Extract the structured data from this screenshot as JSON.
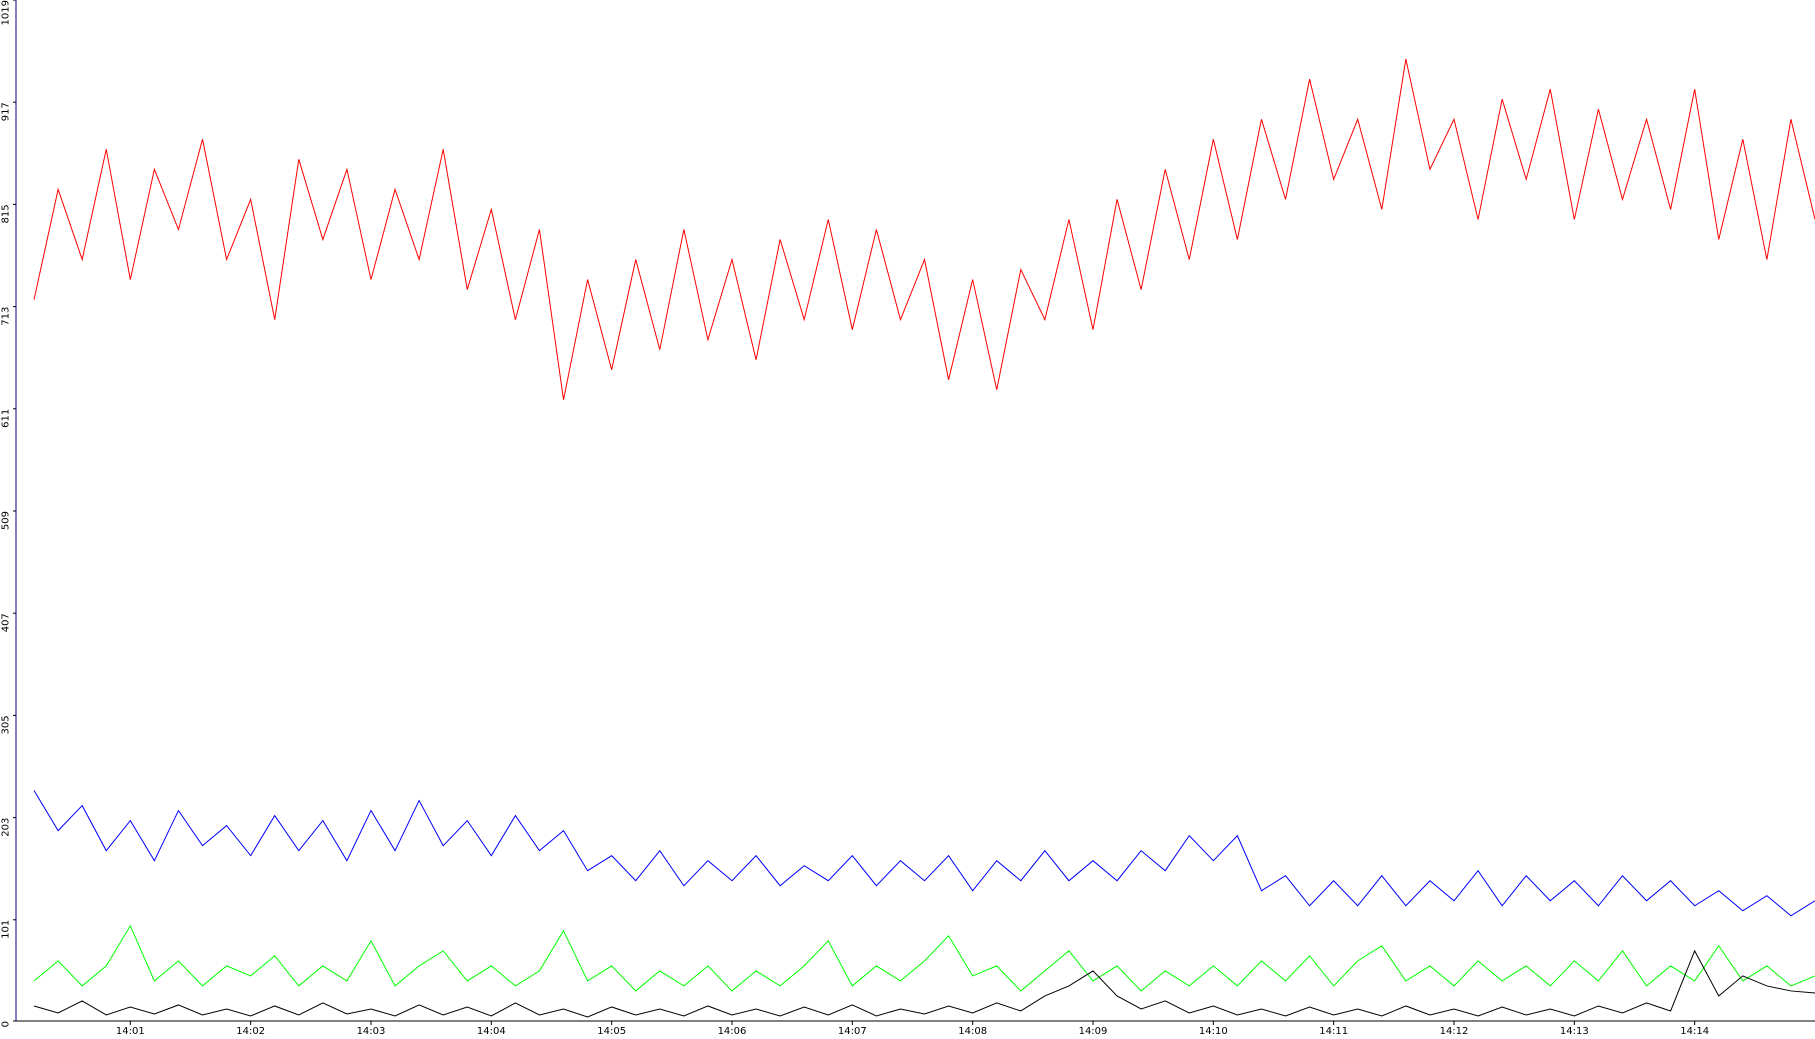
{
  "chart_data": {
    "type": "line",
    "x": [
      0.2,
      0.4,
      0.6,
      0.8,
      1.0,
      1.2,
      1.4,
      1.6,
      1.8,
      2.0,
      2.2,
      2.4,
      2.6,
      2.8,
      3.0,
      3.2,
      3.4,
      3.6,
      3.8,
      4.0,
      4.2,
      4.4,
      4.6,
      4.8,
      5.0,
      5.2,
      5.4,
      5.6,
      5.8,
      6.0,
      6.2,
      6.4,
      6.6,
      6.8,
      7.0,
      7.2,
      7.4,
      7.6,
      7.8,
      8.0,
      8.2,
      8.4,
      8.6,
      8.8,
      9.0,
      9.2,
      9.4,
      9.6,
      9.8,
      10.0,
      10.2,
      10.4,
      10.6,
      10.8,
      11.0,
      11.2,
      11.4,
      11.6,
      11.8,
      12.0,
      12.2,
      12.4,
      12.6,
      12.8,
      13.0,
      13.2,
      13.4,
      13.6,
      13.8,
      14.0,
      14.2,
      14.4,
      14.6,
      14.8,
      15.0
    ],
    "series": [
      {
        "color": "#ff0000",
        "values": [
          720,
          830,
          760,
          870,
          740,
          850,
          790,
          880,
          760,
          820,
          700,
          860,
          780,
          850,
          740,
          830,
          760,
          870,
          730,
          810,
          700,
          790,
          620,
          740,
          650,
          760,
          670,
          790,
          680,
          760,
          660,
          780,
          700,
          800,
          690,
          790,
          700,
          760,
          640,
          740,
          630,
          750,
          700,
          800,
          690,
          820,
          730,
          850,
          760,
          880,
          780,
          900,
          820,
          940,
          840,
          900,
          810,
          960,
          850,
          900,
          800,
          920,
          840,
          930,
          800,
          910,
          820,
          900,
          810,
          930,
          780,
          880,
          760,
          900,
          800
        ]
      },
      {
        "color": "#0000ff",
        "values": [
          230,
          190,
          215,
          170,
          200,
          160,
          210,
          175,
          195,
          165,
          205,
          170,
          200,
          160,
          210,
          170,
          220,
          175,
          200,
          165,
          205,
          170,
          190,
          150,
          165,
          140,
          170,
          135,
          160,
          140,
          165,
          135,
          155,
          140,
          165,
          135,
          160,
          140,
          165,
          130,
          160,
          140,
          170,
          140,
          160,
          140,
          170,
          150,
          185,
          160,
          185,
          130,
          145,
          115,
          140,
          115,
          145,
          115,
          140,
          120,
          150,
          115,
          145,
          120,
          140,
          115,
          145,
          120,
          140,
          115,
          130,
          110,
          125,
          105,
          120
        ]
      },
      {
        "color": "#00ff00",
        "values": [
          40,
          60,
          35,
          55,
          95,
          40,
          60,
          35,
          55,
          45,
          65,
          35,
          55,
          40,
          80,
          35,
          55,
          70,
          40,
          55,
          35,
          50,
          90,
          40,
          55,
          30,
          50,
          35,
          55,
          30,
          50,
          35,
          55,
          80,
          35,
          55,
          40,
          60,
          85,
          45,
          55,
          30,
          50,
          70,
          40,
          55,
          30,
          50,
          35,
          55,
          35,
          60,
          40,
          65,
          35,
          60,
          75,
          40,
          55,
          35,
          60,
          40,
          55,
          35,
          60,
          40,
          70,
          35,
          55,
          40,
          75,
          40,
          55,
          35,
          45
        ]
      },
      {
        "color": "#000000",
        "values": [
          15,
          8,
          20,
          6,
          14,
          7,
          16,
          6,
          12,
          5,
          15,
          6,
          18,
          7,
          12,
          5,
          16,
          6,
          14,
          5,
          18,
          6,
          12,
          4,
          14,
          6,
          12,
          5,
          15,
          6,
          12,
          5,
          14,
          6,
          16,
          5,
          12,
          7,
          15,
          8,
          18,
          10,
          25,
          35,
          50,
          25,
          12,
          20,
          8,
          15,
          6,
          12,
          5,
          14,
          6,
          12,
          5,
          15,
          6,
          12,
          5,
          14,
          6,
          12,
          5,
          15,
          8,
          18,
          10,
          70,
          25,
          45,
          35,
          30,
          28
        ]
      }
    ],
    "xlim": [
      0.05,
      15
    ],
    "xticks": [
      {
        "value": 1,
        "label": "14:01"
      },
      {
        "value": 2,
        "label": "14:02"
      },
      {
        "value": 3,
        "label": "14:03"
      },
      {
        "value": 4,
        "label": "14:04"
      },
      {
        "value": 5,
        "label": "14:05"
      },
      {
        "value": 6,
        "label": "14:06"
      },
      {
        "value": 7,
        "label": "14:07"
      },
      {
        "value": 8,
        "label": "14:08"
      },
      {
        "value": 9,
        "label": "14:09"
      },
      {
        "value": 10,
        "label": "14:10"
      },
      {
        "value": 11,
        "label": "14:11"
      },
      {
        "value": 12,
        "label": "14:12"
      },
      {
        "value": 13,
        "label": "14:13"
      },
      {
        "value": 14,
        "label": "14:14"
      }
    ],
    "ylim": [
      0,
      1019
    ],
    "yticks": [
      0,
      101,
      203,
      305,
      407,
      509,
      611,
      713,
      815,
      917,
      1019
    ]
  }
}
